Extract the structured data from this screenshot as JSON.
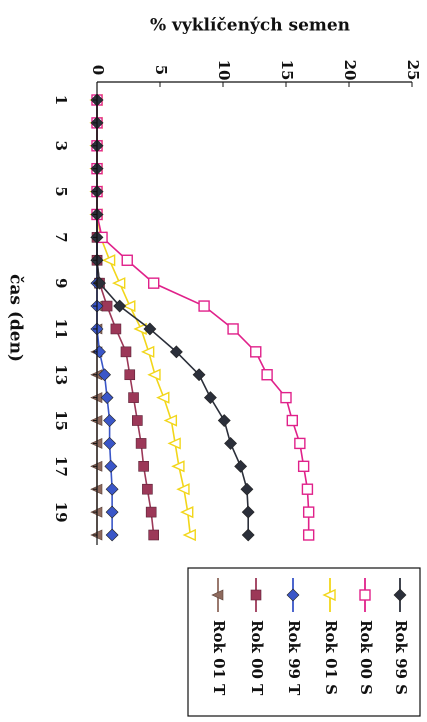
{
  "chart_data": {
    "type": "line",
    "orientation": "rotated-90",
    "xlabel": "čas (den)",
    "ylabel": "% vyklíčených semen",
    "x": [
      1,
      2,
      3,
      4,
      5,
      6,
      7,
      8,
      9,
      10,
      11,
      12,
      13,
      14,
      15,
      16,
      17,
      18,
      19,
      20
    ],
    "x_ticks": [
      1,
      3,
      5,
      7,
      9,
      11,
      13,
      15,
      17,
      19
    ],
    "y_ticks": [
      0,
      5,
      10,
      15,
      20,
      25
    ],
    "ylim": [
      0,
      25
    ],
    "xlim": [
      1,
      20
    ],
    "grid": false,
    "legend": "right",
    "series": [
      {
        "name": "Rok 99 S",
        "color": "#2b2f3a",
        "marker": "diamond",
        "values": [
          0,
          0,
          0,
          0,
          0,
          0,
          0,
          0,
          0.2,
          1.8,
          4.2,
          6.3,
          8.1,
          9.0,
          10.1,
          10.6,
          11.4,
          11.9,
          12.0,
          12.0
        ]
      },
      {
        "name": "Rok 00 S",
        "color": "#e0218a",
        "marker": "square-open",
        "values": [
          0,
          0,
          0,
          0,
          0,
          0,
          0.4,
          2.4,
          4.5,
          8.5,
          10.8,
          12.6,
          13.5,
          15.0,
          15.5,
          16.1,
          16.4,
          16.7,
          16.8,
          16.8
        ]
      },
      {
        "name": "Rok 01 S",
        "color": "#f2d61a",
        "marker": "triangle-open",
        "values": [
          0,
          0,
          0,
          0,
          0,
          0,
          0.3,
          1.0,
          1.8,
          2.6,
          3.5,
          4.1,
          4.6,
          5.3,
          5.9,
          6.2,
          6.5,
          6.9,
          7.2,
          7.4
        ]
      },
      {
        "name": "Rok 99 T",
        "color": "#3a56c8",
        "marker": "diamond",
        "values": [
          0,
          0,
          0,
          0,
          0,
          0,
          0,
          0,
          0,
          0,
          0,
          0.2,
          0.6,
          0.8,
          1.0,
          1.0,
          1.1,
          1.2,
          1.2,
          1.2
        ]
      },
      {
        "name": "Rok 00 T",
        "color": "#9c3858",
        "marker": "square",
        "values": [
          0,
          0,
          0,
          0,
          0,
          0,
          0,
          0,
          0.2,
          0.8,
          1.5,
          2.3,
          2.6,
          2.9,
          3.2,
          3.5,
          3.7,
          4.0,
          4.3,
          4.5
        ]
      },
      {
        "name": "Rok 01 T",
        "color": "#8e6a5e",
        "marker": "triangle",
        "values": [
          0,
          0,
          0,
          0,
          0,
          0,
          0,
          0,
          0,
          0,
          0,
          0,
          0,
          0,
          0,
          0,
          0,
          0,
          0,
          0
        ]
      }
    ]
  }
}
